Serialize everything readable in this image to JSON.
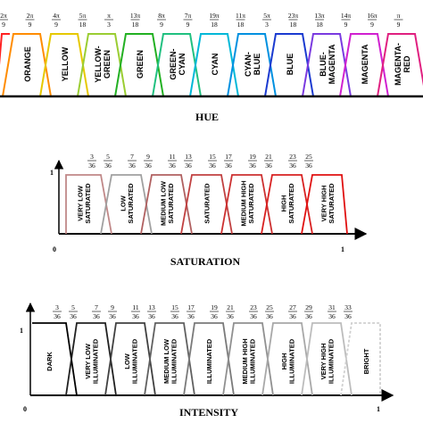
{
  "hue": {
    "title": "HUE",
    "ticks": [
      {
        "num": "2π",
        "den": "9"
      },
      {
        "num": "2π",
        "den": "9"
      },
      {
        "num": "4π",
        "den": "9"
      },
      {
        "num": "5π",
        "den": "18"
      },
      {
        "num": "π",
        "den": "3"
      },
      {
        "num": "13π",
        "den": "18"
      },
      {
        "num": "8π",
        "den": "9"
      },
      {
        "num": "7π",
        "den": "9"
      },
      {
        "num": "19π",
        "den": "18"
      },
      {
        "num": "11π",
        "den": "18"
      },
      {
        "num": "5π",
        "den": "3"
      },
      {
        "num": "23π",
        "den": "18"
      },
      {
        "num": "13π",
        "den": "18"
      },
      {
        "num": "14π",
        "den": "9"
      },
      {
        "num": "16π",
        "den": "9"
      },
      {
        "num": "π",
        "den": "9"
      }
    ],
    "sets": [
      {
        "label": "ORANGE",
        "color": "#ff8c00"
      },
      {
        "label": "YELLOW",
        "color": "#e6c800"
      },
      {
        "label": "YELLOW-\nGREEN",
        "color": "#9acd32"
      },
      {
        "label": "GREEN",
        "color": "#22b022"
      },
      {
        "label": "GREEN-\nCYAN",
        "color": "#20c080"
      },
      {
        "label": "CYAN",
        "color": "#00b8d8"
      },
      {
        "label": "CYAN-\nBLUE",
        "color": "#0090e0"
      },
      {
        "label": "BLUE",
        "color": "#1a3ad0"
      },
      {
        "label": "BLUE-\nMAGENTA",
        "color": "#7a3ae0"
      },
      {
        "label": "MAGENTA",
        "color": "#d020d0"
      },
      {
        "label": "MAGENTA-\nRED",
        "color": "#e02080"
      }
    ],
    "left_edge_color": "#ff2020"
  },
  "saturation": {
    "title": "SATURATION",
    "axis_one": "1",
    "axis_zero": "0",
    "axis_end": "1",
    "ticks": [
      {
        "num": "3",
        "den": "36"
      },
      {
        "num": "5",
        "den": "36"
      },
      {
        "num": "7",
        "den": "36"
      },
      {
        "num": "9",
        "den": "36"
      },
      {
        "num": "11",
        "den": "36"
      },
      {
        "num": "13",
        "den": "36"
      },
      {
        "num": "15",
        "den": "36"
      },
      {
        "num": "17",
        "den": "36"
      },
      {
        "num": "19",
        "den": "36"
      },
      {
        "num": "21",
        "den": "36"
      },
      {
        "num": "23",
        "den": "36"
      },
      {
        "num": "25",
        "den": "36"
      }
    ],
    "sets": [
      {
        "label": "VERY LOW\nSATURATED",
        "color": "#c08888"
      },
      {
        "label": "LOW\nSATURATED",
        "color": "#a0a0a0"
      },
      {
        "label": "MEDIUM LOW\nSATURATED",
        "color": "#b06060"
      },
      {
        "label": "SATURATED",
        "color": "#c04040"
      },
      {
        "label": "MEDIUM HIGH\nSATURATED",
        "color": "#cc3030"
      },
      {
        "label": "HIGH\nSATURATED",
        "color": "#d82020"
      },
      {
        "label": "VERY HIGH\nSATURATED",
        "color": "#e01010"
      }
    ]
  },
  "intensity": {
    "title": "INTENSITY",
    "axis_one": "1",
    "axis_zero": "0",
    "axis_end": "1",
    "ticks": [
      {
        "num": "3",
        "den": "36"
      },
      {
        "num": "5",
        "den": "36"
      },
      {
        "num": "7",
        "den": "36"
      },
      {
        "num": "9",
        "den": "36"
      },
      {
        "num": "11",
        "den": "36"
      },
      {
        "num": "13",
        "den": "36"
      },
      {
        "num": "15",
        "den": "36"
      },
      {
        "num": "17",
        "den": "36"
      },
      {
        "num": "19",
        "den": "36"
      },
      {
        "num": "21",
        "den": "36"
      },
      {
        "num": "23",
        "den": "36"
      },
      {
        "num": "25",
        "den": "36"
      },
      {
        "num": "27",
        "den": "36"
      },
      {
        "num": "29",
        "den": "36"
      },
      {
        "num": "31",
        "den": "36"
      },
      {
        "num": "33",
        "den": "36"
      }
    ],
    "sets": [
      {
        "label": "DARK",
        "color": "#000000"
      },
      {
        "label": "VERY LOW\nILLUMINATED",
        "color": "#202020"
      },
      {
        "label": "LOW\nILLUMINATED",
        "color": "#404040"
      },
      {
        "label": "MEDIUM LOW\nILLUMINATED",
        "color": "#606060"
      },
      {
        "label": "ILLUMINATED",
        "color": "#7a7a7a"
      },
      {
        "label": "MEDIUM HIGH\nILLUMINATED",
        "color": "#909090"
      },
      {
        "label": "HIGH\nILLUMINATED",
        "color": "#a8a8a8"
      },
      {
        "label": "VERY HIGH\nILLUMINATED",
        "color": "#bcbcbc"
      },
      {
        "label": "BRIGHT",
        "color": "#d0d0d0"
      }
    ]
  }
}
